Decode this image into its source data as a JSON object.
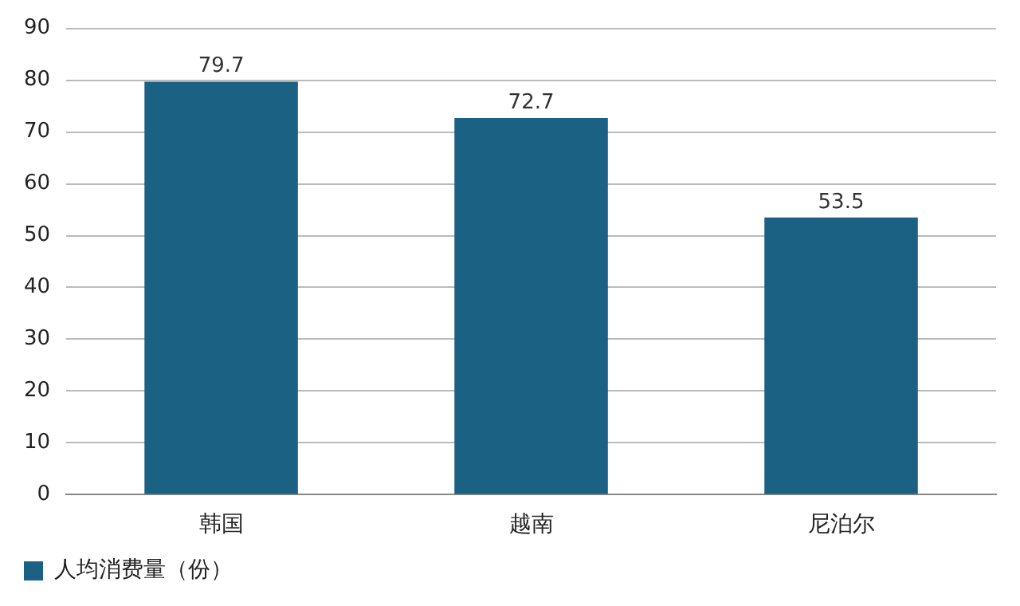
{
  "chart_data": {
    "type": "bar",
    "categories": [
      "韩国",
      "越南",
      "尼泊尔"
    ],
    "series": [
      {
        "name": "人均消费量（份）",
        "color": "#1a6184",
        "values": [
          79.7,
          72.7,
          53.5
        ]
      }
    ],
    "ylim": [
      0,
      90
    ],
    "yticks": [
      0,
      10,
      20,
      30,
      40,
      50,
      60,
      70,
      80,
      90
    ],
    "grid": "y",
    "legend": "bottom",
    "data_labels": true
  }
}
